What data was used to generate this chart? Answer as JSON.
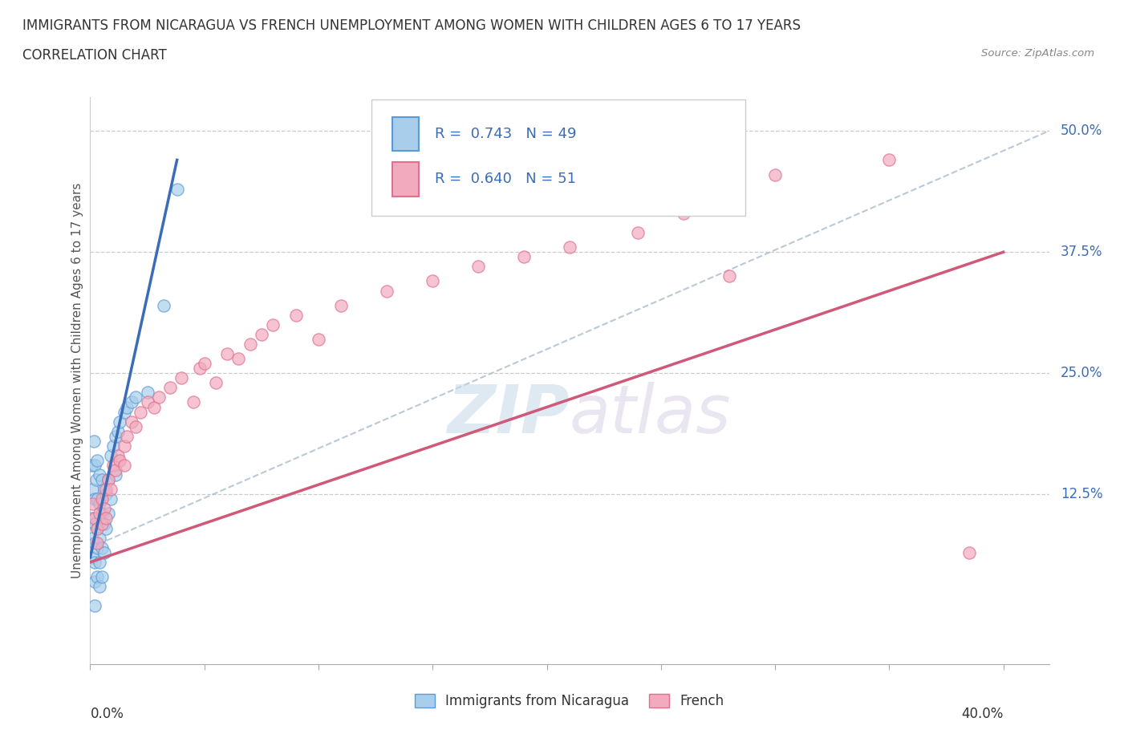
{
  "title": "IMMIGRANTS FROM NICARAGUA VS FRENCH UNEMPLOYMENT AMONG WOMEN WITH CHILDREN AGES 6 TO 17 YEARS",
  "subtitle": "CORRELATION CHART",
  "source": "Source: ZipAtlas.com",
  "ylabel": "Unemployment Among Women with Children Ages 6 to 17 years",
  "yticks_labels": [
    "12.5%",
    "25.0%",
    "37.5%",
    "50.0%"
  ],
  "ytick_values": [
    0.125,
    0.25,
    0.375,
    0.5
  ],
  "legend1_label": "Immigrants from Nicaragua",
  "legend2_label": "French",
  "r1": 0.743,
  "n1": 49,
  "r2": 0.64,
  "n2": 51,
  "color_blue": "#A8CEEB",
  "color_pink": "#F2AABE",
  "color_blue_edge": "#5B9BD5",
  "color_pink_edge": "#E07090",
  "color_blue_line": "#3B6CB7",
  "color_pink_line": "#D05878",
  "color_diag": "#AABCCC",
  "watermark": "ZIPatlas",
  "xlim": [
    0.0,
    0.42
  ],
  "ylim": [
    -0.05,
    0.535
  ],
  "blue_scatter": [
    [
      0.0005,
      0.155
    ],
    [
      0.001,
      0.13
    ],
    [
      0.001,
      0.1
    ],
    [
      0.001,
      0.08
    ],
    [
      0.001,
      0.06
    ],
    [
      0.0015,
      0.18
    ],
    [
      0.002,
      0.155
    ],
    [
      0.002,
      0.12
    ],
    [
      0.002,
      0.095
    ],
    [
      0.002,
      0.075
    ],
    [
      0.002,
      0.055
    ],
    [
      0.002,
      0.035
    ],
    [
      0.002,
      0.01
    ],
    [
      0.0025,
      0.14
    ],
    [
      0.003,
      0.16
    ],
    [
      0.003,
      0.12
    ],
    [
      0.003,
      0.09
    ],
    [
      0.003,
      0.07
    ],
    [
      0.003,
      0.04
    ],
    [
      0.004,
      0.145
    ],
    [
      0.004,
      0.115
    ],
    [
      0.004,
      0.08
    ],
    [
      0.004,
      0.055
    ],
    [
      0.004,
      0.03
    ],
    [
      0.005,
      0.14
    ],
    [
      0.005,
      0.105
    ],
    [
      0.005,
      0.07
    ],
    [
      0.005,
      0.04
    ],
    [
      0.006,
      0.13
    ],
    [
      0.006,
      0.095
    ],
    [
      0.006,
      0.065
    ],
    [
      0.007,
      0.125
    ],
    [
      0.007,
      0.09
    ],
    [
      0.008,
      0.14
    ],
    [
      0.008,
      0.105
    ],
    [
      0.009,
      0.165
    ],
    [
      0.009,
      0.12
    ],
    [
      0.01,
      0.175
    ],
    [
      0.011,
      0.185
    ],
    [
      0.011,
      0.145
    ],
    [
      0.012,
      0.19
    ],
    [
      0.013,
      0.2
    ],
    [
      0.015,
      0.21
    ],
    [
      0.016,
      0.215
    ],
    [
      0.018,
      0.22
    ],
    [
      0.02,
      0.225
    ],
    [
      0.025,
      0.23
    ],
    [
      0.032,
      0.32
    ],
    [
      0.038,
      0.44
    ]
  ],
  "pink_scatter": [
    [
      0.001,
      0.115
    ],
    [
      0.002,
      0.1
    ],
    [
      0.003,
      0.09
    ],
    [
      0.003,
      0.075
    ],
    [
      0.004,
      0.105
    ],
    [
      0.005,
      0.12
    ],
    [
      0.005,
      0.095
    ],
    [
      0.006,
      0.11
    ],
    [
      0.007,
      0.13
    ],
    [
      0.007,
      0.1
    ],
    [
      0.008,
      0.14
    ],
    [
      0.009,
      0.13
    ],
    [
      0.01,
      0.155
    ],
    [
      0.011,
      0.15
    ],
    [
      0.012,
      0.165
    ],
    [
      0.013,
      0.16
    ],
    [
      0.015,
      0.175
    ],
    [
      0.015,
      0.155
    ],
    [
      0.016,
      0.185
    ],
    [
      0.018,
      0.2
    ],
    [
      0.02,
      0.195
    ],
    [
      0.022,
      0.21
    ],
    [
      0.025,
      0.22
    ],
    [
      0.028,
      0.215
    ],
    [
      0.03,
      0.225
    ],
    [
      0.035,
      0.235
    ],
    [
      0.04,
      0.245
    ],
    [
      0.045,
      0.22
    ],
    [
      0.048,
      0.255
    ],
    [
      0.05,
      0.26
    ],
    [
      0.055,
      0.24
    ],
    [
      0.06,
      0.27
    ],
    [
      0.065,
      0.265
    ],
    [
      0.07,
      0.28
    ],
    [
      0.075,
      0.29
    ],
    [
      0.08,
      0.3
    ],
    [
      0.09,
      0.31
    ],
    [
      0.1,
      0.285
    ],
    [
      0.11,
      0.32
    ],
    [
      0.13,
      0.335
    ],
    [
      0.15,
      0.345
    ],
    [
      0.17,
      0.36
    ],
    [
      0.19,
      0.37
    ],
    [
      0.2,
      0.45
    ],
    [
      0.21,
      0.38
    ],
    [
      0.24,
      0.395
    ],
    [
      0.26,
      0.415
    ],
    [
      0.28,
      0.35
    ],
    [
      0.3,
      0.455
    ],
    [
      0.35,
      0.47
    ],
    [
      0.385,
      0.065
    ]
  ]
}
